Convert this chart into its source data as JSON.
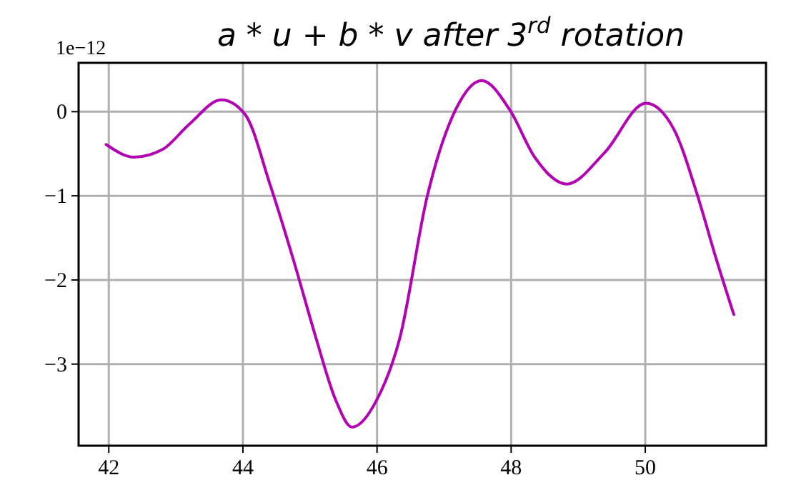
{
  "chart_data": {
    "type": "line",
    "title": "a * u  +  b * v after 3$^{rd}$ rotation",
    "annotations": [
      "1e−12"
    ],
    "x": [
      41.96,
      42.38,
      42.8,
      43.2,
      43.68,
      44.03,
      44.41,
      44.76,
      45.09,
      45.38,
      45.63,
      46.0,
      46.34,
      46.75,
      47.17,
      47.56,
      47.98,
      48.35,
      48.83,
      49.39,
      50.01,
      50.42,
      50.78,
      51.05,
      51.32
    ],
    "series": [
      {
        "color": "#b300b3",
        "values": [
          -0.39,
          -0.54,
          -0.45,
          -0.15,
          0.14,
          -0.03,
          -0.88,
          -1.78,
          -2.69,
          -3.42,
          -3.75,
          -3.42,
          -2.69,
          -1.0,
          0.02,
          0.37,
          0.02,
          -0.54,
          -0.86,
          -0.49,
          0.1,
          -0.2,
          -1.0,
          -1.73,
          -2.41
        ]
      }
    ],
    "xlim": [
      41.55,
      51.8
    ],
    "ylim": [
      -3.97,
      0.58
    ],
    "xticks": [
      42,
      44,
      46,
      48,
      50
    ],
    "yticks": [
      {
        "value": -3,
        "label": "−3"
      },
      {
        "value": -2,
        "label": "−2"
      },
      {
        "value": -1,
        "label": "−1"
      },
      0
    ],
    "grid": true,
    "line_style": "solid",
    "marker": "none"
  }
}
